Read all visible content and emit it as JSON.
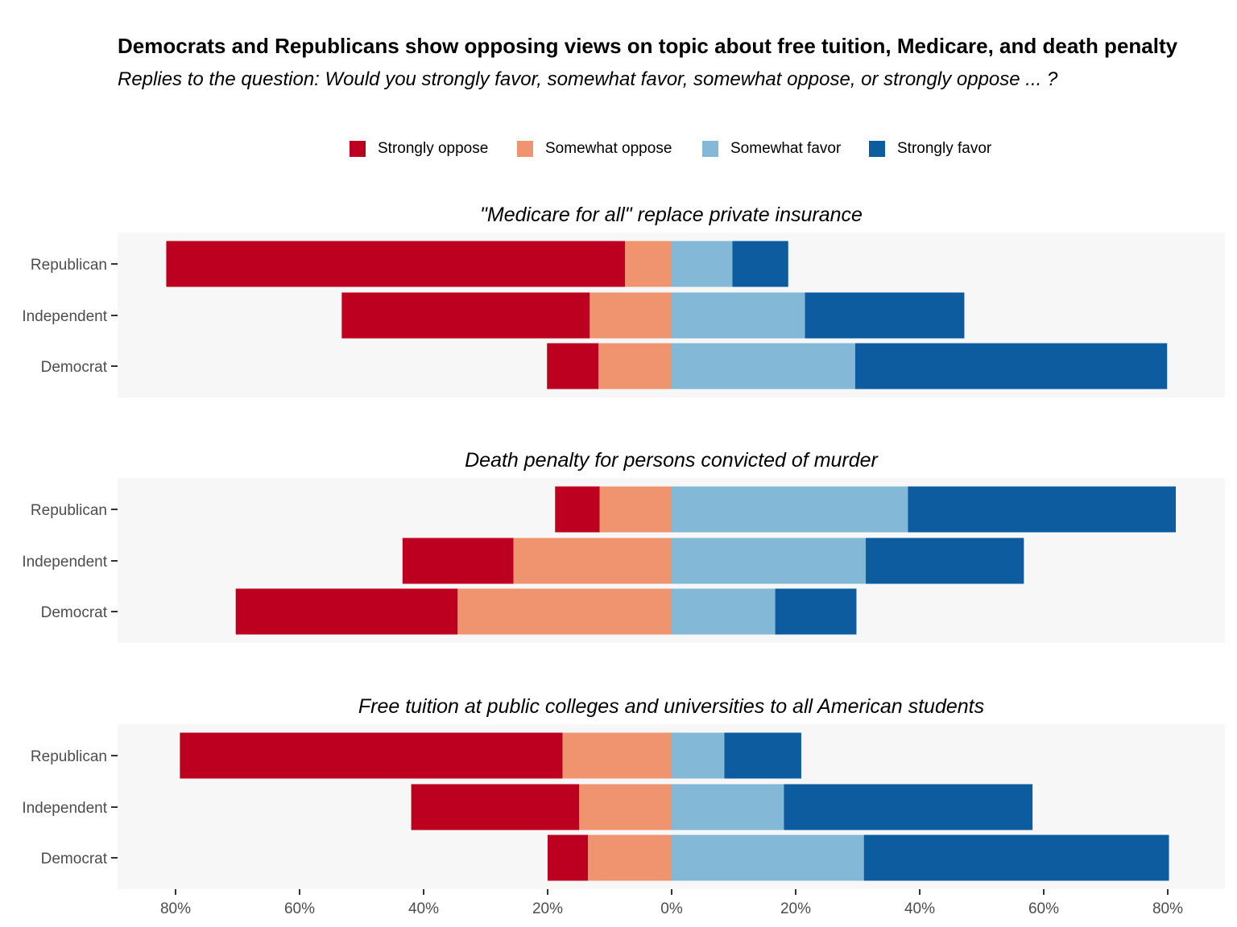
{
  "title": "Democrats and Republicans show opposing views on topic about free tuition, Medicare, and death penalty",
  "subtitle": "Replies to the question: Would you strongly favor, somewhat favor, somewhat oppose, or strongly oppose ... ?",
  "legend": [
    {
      "label": "Strongly oppose",
      "color": "#bd0020"
    },
    {
      "label": "Somewhat oppose",
      "color": "#f09470"
    },
    {
      "label": "Somewhat favor",
      "color": "#83b8d7"
    },
    {
      "label": "Strongly favor",
      "color": "#0e5ca0"
    }
  ],
  "chart_data": {
    "type": "bar",
    "orientation": "horizontal",
    "stacking": "diverging",
    "categories": [
      "Republican",
      "Independent",
      "Democrat"
    ],
    "x_ticks": [
      "80%",
      "60%",
      "40%",
      "20%",
      "0%",
      "20%",
      "40%",
      "60%",
      "80%"
    ],
    "xlim": [
      -88,
      90
    ],
    "legend_position": "top",
    "panel_background": "#f7f7f7",
    "panels": [
      {
        "title": "\"Medicare for all\" replace private insurance",
        "rows": [
          {
            "group": "Republican",
            "strongly_oppose": 74,
            "somewhat_oppose": 7.5,
            "somewhat_favor": 9.8,
            "strongly_favor": 9
          },
          {
            "group": "Independent",
            "strongly_oppose": 40,
            "somewhat_oppose": 13.2,
            "somewhat_favor": 21.5,
            "strongly_favor": 25.7
          },
          {
            "group": "Democrat",
            "strongly_oppose": 8.3,
            "somewhat_oppose": 11.8,
            "somewhat_favor": 29.6,
            "strongly_favor": 50.3
          }
        ]
      },
      {
        "title": "Death penalty for persons convicted of murder",
        "rows": [
          {
            "group": "Republican",
            "strongly_oppose": 7.2,
            "somewhat_oppose": 11.6,
            "somewhat_favor": 38.1,
            "strongly_favor": 43.2
          },
          {
            "group": "Independent",
            "strongly_oppose": 17.9,
            "somewhat_oppose": 25.5,
            "somewhat_favor": 31.3,
            "strongly_favor": 25.5
          },
          {
            "group": "Democrat",
            "strongly_oppose": 35.8,
            "somewhat_oppose": 34.5,
            "somewhat_favor": 16.7,
            "strongly_favor": 13.1
          }
        ]
      },
      {
        "title": "Free tuition at public colleges and universities to all American students",
        "rows": [
          {
            "group": "Republican",
            "strongly_oppose": 61.7,
            "somewhat_oppose": 17.6,
            "somewhat_favor": 8.5,
            "strongly_favor": 12.4
          },
          {
            "group": "Independent",
            "strongly_oppose": 27.1,
            "somewhat_oppose": 14.9,
            "somewhat_favor": 18.1,
            "strongly_favor": 40.1
          },
          {
            "group": "Democrat",
            "strongly_oppose": 6.5,
            "somewhat_oppose": 13.5,
            "somewhat_favor": 31,
            "strongly_favor": 49.2
          }
        ]
      }
    ]
  }
}
